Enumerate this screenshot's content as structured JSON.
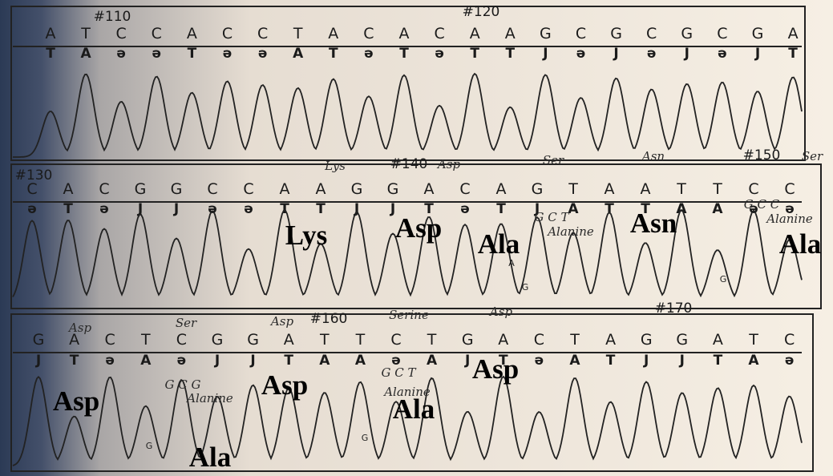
{
  "panels": [
    {
      "markers": [
        "#110",
        "#120"
      ],
      "top": [
        "A",
        "T",
        "C",
        "C",
        "A",
        "C",
        "C",
        "T",
        "A",
        "C",
        "A",
        "C",
        "A",
        "A",
        "G",
        "C",
        "G",
        "C",
        "G",
        "C",
        "G",
        "A"
      ],
      "bottom": [
        "T",
        "A",
        "ə",
        "ə",
        "T",
        "ə",
        "ə",
        "A",
        "T",
        "ə",
        "T",
        "ə",
        "T",
        "T",
        "J",
        "ə",
        "J",
        "ə",
        "J",
        "ə",
        "J",
        "T"
      ],
      "handwritten": [],
      "notes": [],
      "labels": []
    },
    {
      "markers": [
        "#130",
        "#140",
        "#150"
      ],
      "top": [
        "C",
        "A",
        "C",
        "G",
        "G",
        "C",
        "C",
        "A",
        "A",
        "G",
        "G",
        "A",
        "C",
        "A",
        "G",
        "T",
        "A",
        "A",
        "T",
        "T",
        "C",
        "C"
      ],
      "bottom": [
        "ə",
        "T",
        "ə",
        "J",
        "J",
        "ə",
        "ə",
        "T",
        "T",
        "J",
        "J",
        "T",
        "ə",
        "T",
        "J",
        "A",
        "T",
        "T",
        "A",
        "A",
        "ə",
        "ə"
      ],
      "handwritten": [
        "Lys",
        "Asp",
        "Ser",
        "Asn",
        "Ser",
        "G  C  T",
        "Alanine",
        "G  C  C",
        "Alanine"
      ],
      "notes": [
        "A",
        "G",
        "G"
      ],
      "labels": [
        "Lys",
        "Asp",
        "Ala",
        "Asn",
        "Ala"
      ]
    },
    {
      "markers": [
        "#160",
        "#170"
      ],
      "top": [
        "G",
        "A",
        "C",
        "T",
        "C",
        "G",
        "G",
        "A",
        "T",
        "T",
        "C",
        "T",
        "G",
        "A",
        "C",
        "T",
        "A",
        "G",
        "G",
        "A",
        "T",
        "C"
      ],
      "bottom": [
        "J",
        "T",
        "ə",
        "A",
        "ə",
        "J",
        "J",
        "T",
        "A",
        "A",
        "ə",
        "A",
        "J",
        "T",
        "ə",
        "A",
        "T",
        "J",
        "J",
        "T",
        "A",
        "ə"
      ],
      "handwritten": [
        "Asp",
        "Ser",
        "Asp",
        "Serine",
        "Asp",
        "G  C  G",
        "Alanine",
        "G  C  T",
        "Alanine"
      ],
      "notes": [
        "G",
        "G"
      ],
      "labels": [
        "Asp",
        "Ala",
        "Asp",
        "Ala",
        "Asp"
      ]
    }
  ]
}
